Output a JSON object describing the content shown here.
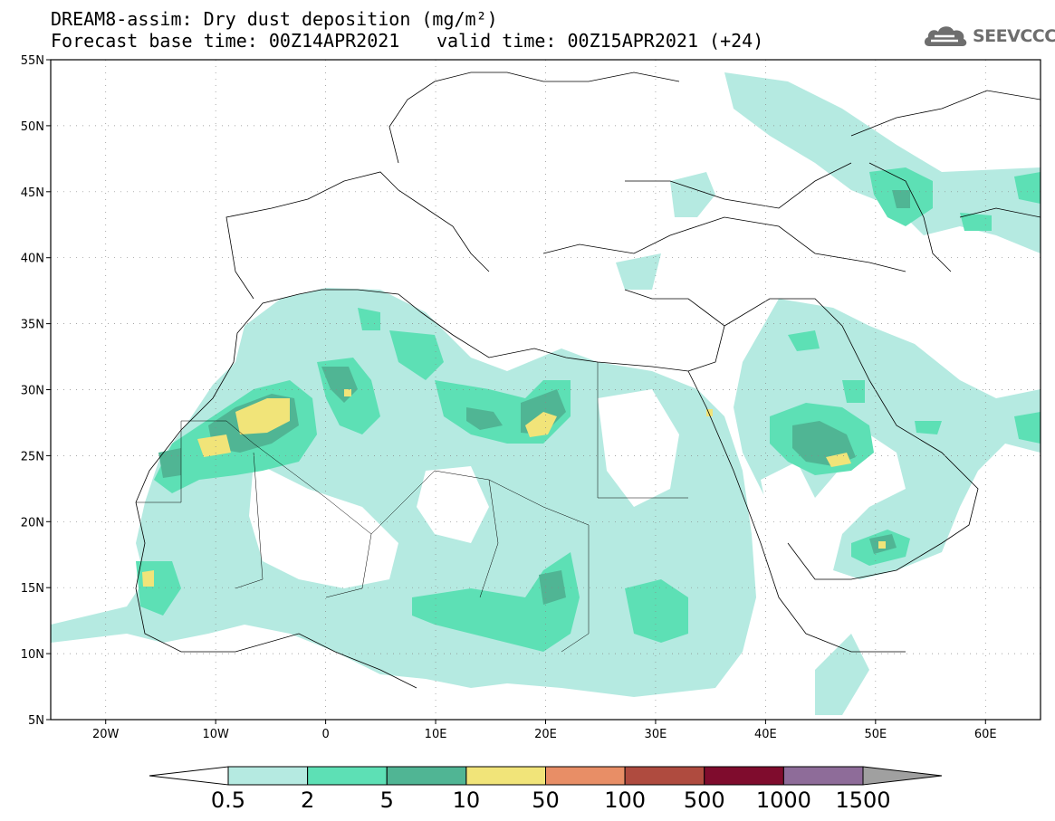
{
  "header": {
    "title": "DREAM8-assim: Dry dust deposition (mg/m²)",
    "base_time": "Forecast base time: 00Z14APR2021",
    "valid_time": "valid time: 00Z15APR2021 (+24)"
  },
  "logo": {
    "text": "SEEVCCC",
    "icon": "cloud-icon"
  },
  "map": {
    "lat_labels": [
      "55N",
      "50N",
      "45N",
      "40N",
      "35N",
      "30N",
      "25N",
      "20N",
      "15N",
      "10N",
      "5N"
    ],
    "lon_labels": [
      "20W",
      "10W",
      "0",
      "10E",
      "20E",
      "30E",
      "40E",
      "50E",
      "60E"
    ],
    "lon_range": [
      -25,
      65
    ],
    "lat_range": [
      5,
      55
    ],
    "grid": "dotted"
  },
  "legend": {
    "labels": [
      "0.5",
      "2",
      "5",
      "10",
      "50",
      "100",
      "500",
      "1000",
      "1500"
    ],
    "colors": [
      "#ffffff",
      "#b5eae1",
      "#5de0b5",
      "#50b594",
      "#f1e479",
      "#e88e66",
      "#af4b3f",
      "#7f0c2d",
      "#8e6c99",
      "#a0a0a0"
    ]
  }
}
